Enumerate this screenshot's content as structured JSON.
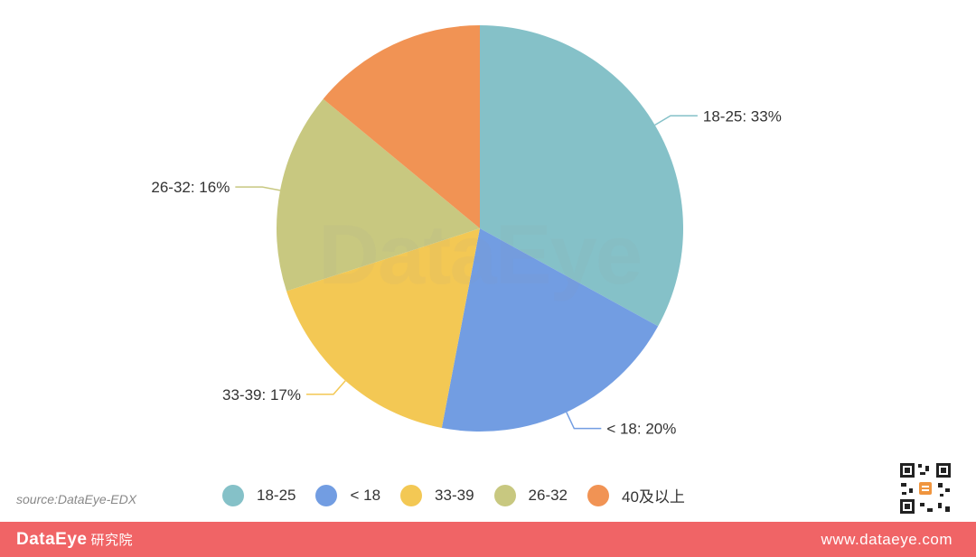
{
  "chart_data": {
    "type": "pie",
    "slices": [
      {
        "label": "18-25",
        "value": 33,
        "color": "#85c1c8"
      },
      {
        "label": "< 18",
        "value": 20,
        "color": "#729de2"
      },
      {
        "label": "33-39",
        "value": 17,
        "color": "#f3c854"
      },
      {
        "label": "26-32",
        "value": 16,
        "color": "#c8c880"
      },
      {
        "label": "40及以上",
        "value": 14,
        "color": "#f19354"
      }
    ],
    "data_labels": [
      "18-25: 33%",
      "< 18: 20%",
      "33-39: 17%",
      "26-32: 16%"
    ],
    "legend": [
      "18-25",
      "< 18",
      "33-39",
      "26-32",
      "40及以上"
    ],
    "legend_position": "bottom"
  },
  "watermark": "DataEye",
  "source": "source:DataEye-EDX",
  "footer": {
    "brand": "DataEye",
    "brand_sub": "研究院",
    "website": "www.dataeye.com"
  }
}
